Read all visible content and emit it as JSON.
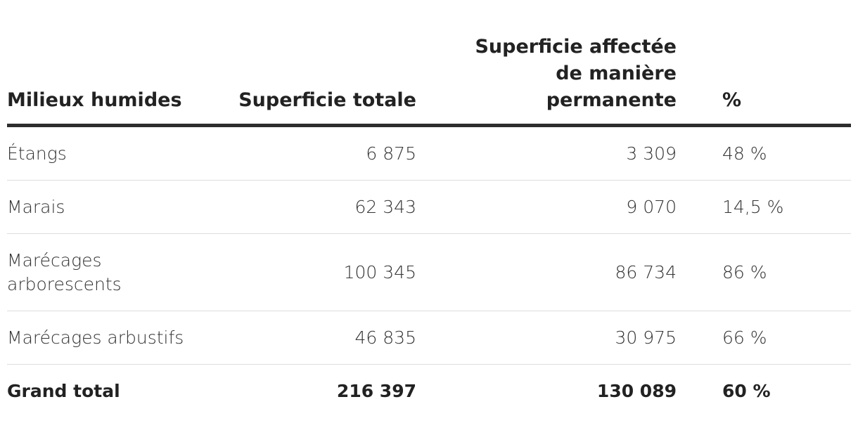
{
  "chart_data": {
    "type": "table",
    "columns": [
      "Milieux humides",
      "Superficie totale",
      "Superficie affectée de manière permanente",
      "%"
    ],
    "rows": [
      [
        "Étangs",
        "6 875",
        "3 309",
        "48 %"
      ],
      [
        "Marais",
        "62 343",
        "9 070",
        "14,5 %"
      ],
      [
        "Marécages arborescents",
        "100 345",
        "86 734",
        "86 %"
      ],
      [
        "Marécages arbustifs",
        "46 835",
        "30 975",
        "66 %"
      ],
      [
        "Grand total",
        "216 397",
        "130 089",
        "60 %"
      ]
    ]
  }
}
